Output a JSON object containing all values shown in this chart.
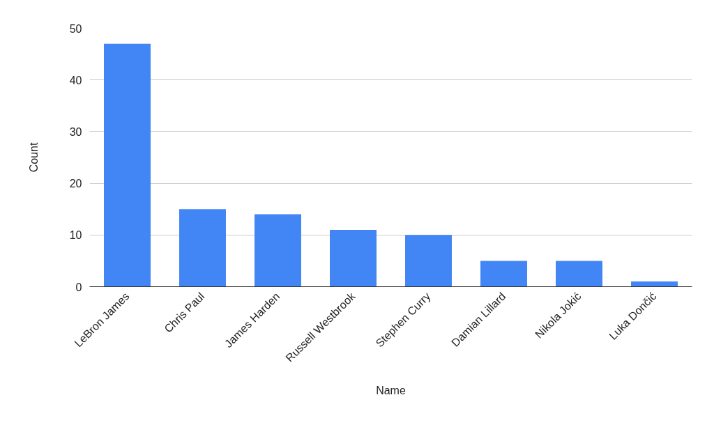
{
  "chart_data": {
    "type": "bar",
    "xlabel": "Name",
    "ylabel": "Count",
    "categories": [
      "LeBron James",
      "Chris Paul",
      "James Harden",
      "Russell Westbrook",
      "Stephen Curry",
      "Damian Lillard",
      "Nikola Jokić",
      "Luka Dončić"
    ],
    "values": [
      47,
      15,
      14,
      11,
      10,
      5,
      5,
      1
    ],
    "color": "#4285f4",
    "ylim": [
      0,
      50
    ],
    "yticks": [
      0,
      10,
      20,
      30,
      40,
      50
    ],
    "grid": "y"
  }
}
